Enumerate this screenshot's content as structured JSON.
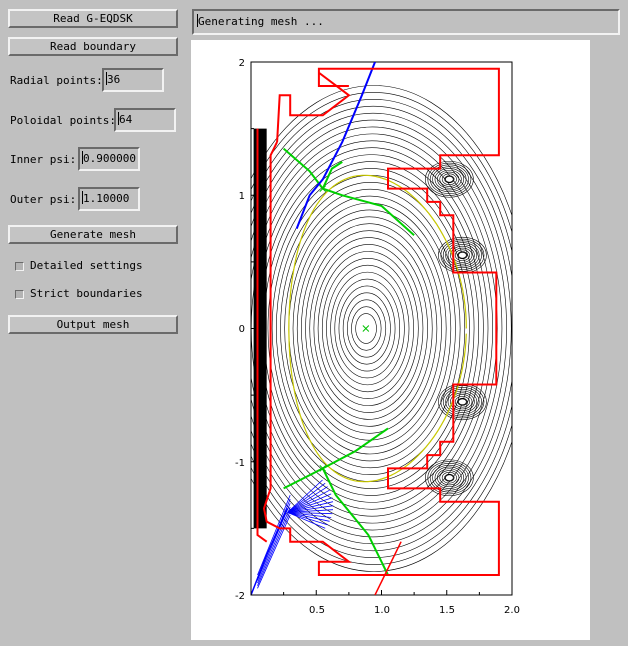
{
  "buttons": {
    "read_geqdsk": "Read G-EQDSK",
    "read_boundary": "Read boundary",
    "generate_mesh": "Generate mesh",
    "output_mesh": "Output mesh"
  },
  "fields": {
    "radial_points": {
      "label": "Radial points:",
      "value": "36"
    },
    "poloidal_points": {
      "label": "Poloidal points:",
      "value": "64"
    },
    "inner_psi": {
      "label": "Inner psi:",
      "value": "0.900000"
    },
    "outer_psi": {
      "label": "Outer psi:",
      "value": "1.10000"
    }
  },
  "checkboxes": {
    "detailed_settings": {
      "label": "Detailed settings",
      "checked": false
    },
    "strict_boundaries": {
      "label": "Strict boundaries",
      "checked": false
    }
  },
  "status": {
    "text": "Generating mesh ..."
  },
  "plot": {
    "x_ticks": [
      "0.5",
      "1.0",
      "1.5",
      "2.0"
    ],
    "y_ticks": [
      "2",
      "1",
      "0",
      "-1",
      "-2"
    ],
    "xlim": [
      0.0,
      2.0
    ],
    "ylim": [
      -2.0,
      2.0
    ],
    "colors": {
      "contours": "#000000",
      "boundary": "#ff0000",
      "separatrix": "#00d000",
      "mesh": "#0000ff",
      "last_surface": "#c8c800",
      "axis_marker": "#00c000"
    }
  }
}
